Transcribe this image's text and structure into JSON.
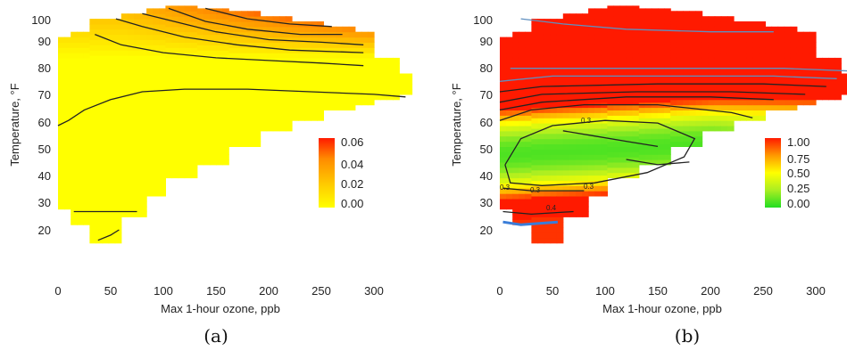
{
  "chart_data": [
    {
      "type": "heatmap",
      "caption": "(a)",
      "xlabel": "Max 1-hour ozone, ppb",
      "ylabel": "Temperature, °F",
      "xlim": [
        -5,
        335
      ],
      "ylim": [
        15,
        105
      ],
      "x_ticks": [
        0,
        50,
        100,
        150,
        200,
        250,
        300
      ],
      "y_ticks": [
        20,
        30,
        40,
        50,
        60,
        70,
        80,
        90,
        100
      ],
      "grid": false,
      "legend_position": "right",
      "colorscale": {
        "type": "continuous",
        "ticks": [
          "0.00",
          "0.02",
          "0.04",
          "0.06"
        ],
        "min": 0.0,
        "max": 0.06,
        "colors": [
          "#ffff00",
          "#ffc800",
          "#ff8c00",
          "#ff1a00"
        ]
      },
      "contours": [
        {
          "level": 0.0,
          "points": [
            [
              0,
              60
            ],
            [
              10,
              62
            ],
            [
              25,
              66
            ],
            [
              50,
              70
            ],
            [
              80,
              73
            ],
            [
              120,
              74
            ],
            [
              180,
              74
            ],
            [
              240,
              73
            ],
            [
              300,
              72
            ],
            [
              330,
              71
            ]
          ]
        },
        {
          "level": 0.01,
          "points": [
            [
              35,
              95
            ],
            [
              60,
              91
            ],
            [
              100,
              88
            ],
            [
              150,
              86
            ],
            [
              200,
              85
            ],
            [
              250,
              84
            ],
            [
              290,
              83
            ]
          ]
        },
        {
          "level": 0.02,
          "points": [
            [
              55,
              101
            ],
            [
              80,
              98
            ],
            [
              120,
              94
            ],
            [
              170,
              91
            ],
            [
              220,
              89
            ],
            [
              290,
              88
            ]
          ]
        },
        {
          "level": 0.03,
          "points": [
            [
              80,
              103
            ],
            [
              110,
              100
            ],
            [
              150,
              96
            ],
            [
              200,
              93
            ],
            [
              250,
              92
            ],
            [
              290,
              91
            ]
          ]
        },
        {
          "level": 0.04,
          "points": [
            [
              105,
              105
            ],
            [
              140,
              100
            ],
            [
              180,
              97
            ],
            [
              230,
              95
            ],
            [
              270,
              95
            ]
          ]
        },
        {
          "level": 0.05,
          "points": [
            [
              140,
              105
            ],
            [
              180,
              101
            ],
            [
              220,
              99
            ],
            [
              260,
              98
            ]
          ]
        },
        {
          "level": 0.0,
          "points": [
            [
              15,
              27
            ],
            [
              40,
              27
            ],
            [
              75,
              27
            ]
          ]
        },
        {
          "level": 0.0,
          "points": [
            [
              38,
              16
            ],
            [
              50,
              18
            ],
            [
              58,
              20
            ]
          ]
        }
      ]
    },
    {
      "type": "heatmap",
      "caption": "(b)",
      "xlabel": "Max 1-hour ozone, ppb",
      "ylabel": "Temperature, °F",
      "xlim": [
        -5,
        335
      ],
      "ylim": [
        15,
        105
      ],
      "x_ticks": [
        0,
        50,
        100,
        150,
        200,
        250,
        300
      ],
      "y_ticks": [
        20,
        30,
        40,
        50,
        60,
        70,
        80,
        90,
        100
      ],
      "grid": false,
      "legend_position": "right",
      "colorscale": {
        "type": "continuous",
        "ticks": [
          "1.00",
          "0.75",
          "0.50",
          "0.25",
          "0.00"
        ],
        "min": 0.0,
        "max": 1.0,
        "colors": [
          "#22dd22",
          "#aaee22",
          "#ffff00",
          "#ff9900",
          "#ff1a00"
        ]
      },
      "contour_labels": [
        "0.3",
        "0.3",
        "0.3",
        "0.3",
        "0.4"
      ],
      "contours": [
        {
          "level": 0.3,
          "points": [
            [
              5,
              45
            ],
            [
              20,
              55
            ],
            [
              50,
              60
            ],
            [
              100,
              62
            ],
            [
              150,
              61
            ],
            [
              185,
              55
            ],
            [
              175,
              48
            ],
            [
              140,
              42
            ],
            [
              90,
              38
            ],
            [
              40,
              37
            ],
            [
              10,
              38
            ],
            [
              5,
              45
            ]
          ]
        },
        {
          "level": 0.4,
          "points": [
            [
              3,
              36
            ],
            [
              30,
              35
            ],
            [
              60,
              35
            ],
            [
              80,
              35
            ]
          ]
        },
        {
          "level": 0.5,
          "points": [
            [
              0,
              62
            ],
            [
              30,
              66
            ],
            [
              80,
              68
            ],
            [
              150,
              68
            ],
            [
              220,
              65
            ],
            [
              240,
              63
            ]
          ]
        },
        {
          "level": 0.6,
          "points": [
            [
              0,
              66
            ],
            [
              40,
              69
            ],
            [
              120,
              71
            ],
            [
              200,
              71
            ],
            [
              260,
              70
            ]
          ]
        },
        {
          "level": 0.7,
          "points": [
            [
              0,
              69
            ],
            [
              40,
              72
            ],
            [
              130,
              73
            ],
            [
              220,
              73
            ],
            [
              290,
              72
            ]
          ]
        },
        {
          "level": 0.8,
          "points": [
            [
              0,
              73
            ],
            [
              40,
              75
            ],
            [
              150,
              76
            ],
            [
              250,
              76
            ],
            [
              310,
              75
            ]
          ]
        },
        {
          "level": 0.9,
          "points": [
            [
              0,
              77
            ],
            [
              50,
              79
            ],
            [
              160,
              79
            ],
            [
              260,
              79
            ],
            [
              320,
              78
            ]
          ]
        },
        {
          "level": 0.95,
          "points": [
            [
              10,
              82
            ],
            [
              60,
              82
            ],
            [
              160,
              82
            ],
            [
              270,
              82
            ],
            [
              330,
              81
            ]
          ]
        },
        {
          "level": 0.2,
          "points": [
            [
              60,
              58
            ],
            [
              90,
              56
            ],
            [
              120,
              54
            ],
            [
              150,
              52
            ]
          ]
        },
        {
          "level": 0.35,
          "points": [
            [
              120,
              47
            ],
            [
              150,
              45
            ],
            [
              180,
              46
            ]
          ]
        },
        {
          "level": 0.5,
          "points": [
            [
              3,
              27
            ],
            [
              30,
              26
            ],
            [
              70,
              27
            ]
          ]
        },
        {
          "level": 0.6,
          "points": [
            [
              3,
              23
            ],
            [
              20,
              22
            ],
            [
              55,
              23
            ]
          ]
        },
        {
          "level": 0.9,
          "points": [
            [
              20,
              101
            ],
            [
              60,
              99
            ],
            [
              120,
              97
            ],
            [
              200,
              96
            ],
            [
              260,
              96
            ]
          ]
        }
      ]
    }
  ]
}
